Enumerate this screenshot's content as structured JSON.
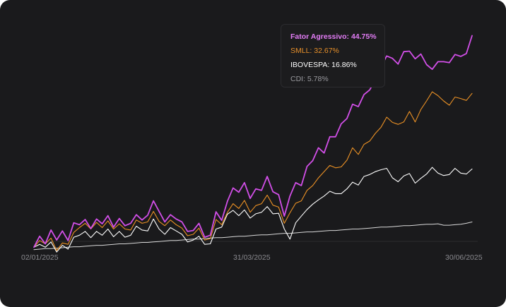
{
  "chart_data": {
    "type": "line",
    "x_ticks": [
      "02/01/2025",
      "31/03/2025",
      "30/06/2025"
    ],
    "x_start": "02/01/2025",
    "x_end": "30/06/2025",
    "ylim": [
      -3,
      46
    ],
    "grid": false,
    "legend_placement": "top-right",
    "series": [
      {
        "name": "Fator Agressivo",
        "final_label": "44.75%",
        "color": "#d24fe8",
        "values": [
          0.5,
          2.8,
          1.2,
          4.1,
          2.0,
          3.9,
          1.9,
          5.6,
          5.2,
          6.3,
          4.4,
          6.4,
          5.4,
          7.1,
          4.7,
          6.5,
          5.0,
          5.5,
          7.3,
          6.2,
          7.2,
          10.2,
          8.0,
          5.8,
          7.3,
          6.4,
          5.8,
          3.8,
          4.0,
          5.5,
          2.6,
          3.0,
          7.9,
          6.1,
          10.1,
          12.9,
          12.0,
          14.0,
          10.7,
          12.7,
          12.4,
          15.3,
          12.1,
          11.5,
          7.0,
          11.2,
          14.0,
          13.4,
          17.4,
          18.6,
          21.3,
          20.2,
          23.6,
          23.6,
          26.3,
          27.4,
          30.4,
          29.9,
          32.4,
          33.4,
          35.5,
          38.2,
          40.5,
          40.0,
          38.8,
          41.4,
          41.5,
          39.9,
          40.9,
          38.7,
          37.7,
          39.3,
          39.3,
          39.1,
          40.8,
          40.4,
          41.0,
          44.75
        ]
      },
      {
        "name": "SMLL",
        "final_label": "32.67%",
        "color": "#eb9125",
        "values": [
          0.5,
          1.9,
          1.2,
          2.4,
          -0.2,
          1.4,
          1.1,
          3.6,
          4.6,
          5.5,
          4.3,
          5.7,
          4.6,
          6.0,
          4.3,
          5.4,
          4.3,
          4.1,
          6.2,
          5.5,
          5.8,
          8.0,
          5.9,
          5.0,
          6.2,
          5.2,
          4.5,
          2.9,
          3.2,
          4.5,
          2.0,
          2.3,
          6.3,
          5.2,
          7.8,
          9.6,
          8.6,
          10.3,
          7.8,
          9.2,
          9.6,
          11.4,
          9.3,
          8.9,
          5.5,
          7.7,
          9.7,
          10.2,
          12.4,
          13.4,
          15.0,
          16.3,
          17.6,
          17.1,
          17.3,
          18.7,
          21.3,
          19.9,
          22.0,
          22.7,
          24.3,
          25.6,
          27.7,
          26.6,
          26.2,
          26.7,
          28.9,
          26.7,
          29.3,
          31.1,
          33.0,
          32.2,
          31.1,
          30.2,
          31.9,
          31.6,
          31.2,
          32.67
        ]
      },
      {
        "name": "IBOVESPA",
        "final_label": "16.86%",
        "color": "#ffffff",
        "values": [
          0.5,
          1.1,
          0.5,
          1.6,
          -0.5,
          0.9,
          0.1,
          2.6,
          3.0,
          3.8,
          2.5,
          3.8,
          3.0,
          4.3,
          2.7,
          3.8,
          2.6,
          3.0,
          4.9,
          4.1,
          3.9,
          6.4,
          4.3,
          3.2,
          4.6,
          3.9,
          3.2,
          1.6,
          2.0,
          2.8,
          1.1,
          1.2,
          4.3,
          4.7,
          7.4,
          8.2,
          7.1,
          8.3,
          6.6,
          7.5,
          7.8,
          9.0,
          7.5,
          7.6,
          4.3,
          2.2,
          5.6,
          7.0,
          8.4,
          9.5,
          10.4,
          11.2,
          12.2,
          11.7,
          11.7,
          12.7,
          14.1,
          13.5,
          15.3,
          15.7,
          16.3,
          16.7,
          17.0,
          15.0,
          14.2,
          15.4,
          15.9,
          13.9,
          14.9,
          15.8,
          17.2,
          16.0,
          15.5,
          15.7,
          17.0,
          16.0,
          15.8,
          16.86
        ]
      },
      {
        "name": "CDI",
        "final_label": "5.78%",
        "color": "#d9d9d9",
        "values": [
          0.0,
          0.1,
          0.2,
          0.2,
          0.3,
          0.4,
          0.5,
          0.6,
          0.6,
          0.7,
          0.8,
          0.9,
          0.9,
          1.0,
          1.1,
          1.2,
          1.2,
          1.3,
          1.4,
          1.5,
          1.5,
          1.6,
          1.7,
          1.8,
          1.9,
          1.9,
          2.0,
          2.1,
          2.2,
          2.2,
          2.3,
          2.4,
          2.5,
          2.5,
          2.6,
          2.7,
          2.8,
          2.8,
          2.9,
          3.0,
          3.1,
          3.1,
          3.2,
          3.3,
          3.4,
          3.4,
          3.5,
          3.6,
          3.7,
          3.7,
          3.8,
          3.9,
          4.0,
          4.0,
          4.1,
          4.2,
          4.3,
          4.3,
          4.4,
          4.5,
          4.6,
          4.7,
          4.7,
          4.8,
          4.9,
          5.0,
          5.0,
          5.1,
          5.2,
          5.3,
          5.3,
          5.4,
          5.1,
          5.1,
          5.2,
          5.3,
          5.5,
          5.78
        ]
      }
    ]
  }
}
